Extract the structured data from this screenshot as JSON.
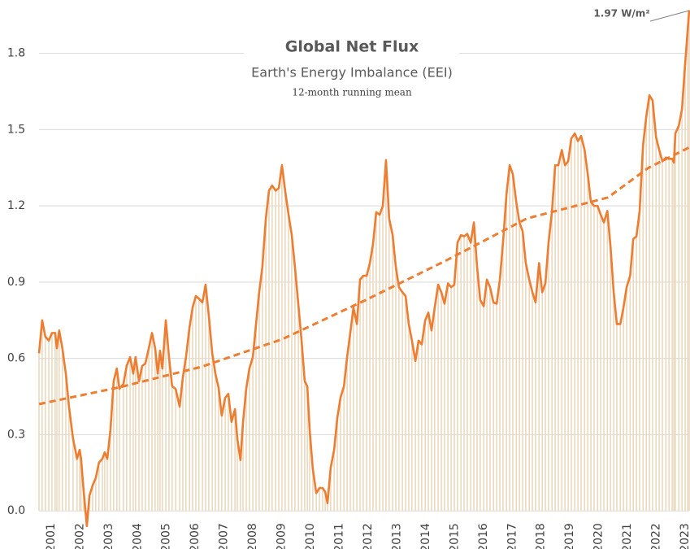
{
  "chart_data": {
    "type": "line",
    "title": "Global Net Flux",
    "subtitle": "Earth's Energy Imbalance (EEI)",
    "note": "12-month running mean",
    "annotation": "1.97 W/m²",
    "grid": true,
    "bar_color": "#ead9bf",
    "x": [
      2000.58,
      2000.69,
      2000.8,
      2000.92,
      2001.03,
      2001.14,
      2001.2,
      2001.28,
      2001.39,
      2001.51,
      2001.62,
      2001.76,
      2001.9,
      2001.99,
      2002.04,
      2002.13,
      2002.24,
      2002.33,
      2002.44,
      2002.55,
      2002.66,
      2002.78,
      2002.86,
      2002.95,
      2003.06,
      2003.17,
      2003.28,
      2003.37,
      2003.51,
      2003.62,
      2003.74,
      2003.85,
      2003.93,
      2004.05,
      2004.16,
      2004.27,
      2004.39,
      2004.5,
      2004.61,
      2004.7,
      2004.78,
      2004.86,
      2004.98,
      2005.09,
      2005.2,
      2005.32,
      2005.46,
      2005.57,
      2005.68,
      2005.8,
      2005.91,
      2006.02,
      2006.13,
      2006.25,
      2006.36,
      2006.47,
      2006.59,
      2006.7,
      2006.81,
      2006.92,
      2007.04,
      2007.15,
      2007.26,
      2007.38,
      2007.46,
      2007.57,
      2007.66,
      2007.77,
      2007.88,
      2008.0,
      2008.11,
      2008.22,
      2008.33,
      2008.45,
      2008.56,
      2008.67,
      2008.79,
      2008.9,
      2009.01,
      2009.12,
      2009.24,
      2009.35,
      2009.46,
      2009.58,
      2009.69,
      2009.8,
      2009.89,
      2009.97,
      2010.08,
      2010.2,
      2010.31,
      2010.42,
      2010.51,
      2010.59,
      2010.7,
      2010.82,
      2010.93,
      2011.04,
      2011.16,
      2011.27,
      2011.38,
      2011.49,
      2011.61,
      2011.72,
      2011.83,
      2011.95,
      2012.06,
      2012.17,
      2012.28,
      2012.4,
      2012.51,
      2012.62,
      2012.73,
      2012.85,
      2012.96,
      2013.07,
      2013.19,
      2013.3,
      2013.41,
      2013.52,
      2013.64,
      2013.75,
      2013.86,
      2013.98,
      2014.09,
      2014.2,
      2014.31,
      2014.43,
      2014.54,
      2014.65,
      2014.77,
      2014.88,
      2014.99,
      2015.1,
      2015.22,
      2015.33,
      2015.44,
      2015.56,
      2015.67,
      2015.78,
      2015.89,
      2016.01,
      2016.12,
      2016.23,
      2016.35,
      2016.46,
      2016.57,
      2016.68,
      2016.8,
      2016.91,
      2017.02,
      2017.14,
      2017.25,
      2017.36,
      2017.47,
      2017.59,
      2017.7,
      2017.81,
      2017.93,
      2018.04,
      2018.15,
      2018.26,
      2018.38,
      2018.49,
      2018.6,
      2018.72,
      2018.83,
      2018.94,
      2019.05,
      2019.17,
      2019.28,
      2019.39,
      2019.51,
      2019.62,
      2019.73,
      2019.84,
      2019.96,
      2020.07,
      2020.18,
      2020.3,
      2020.41,
      2020.52,
      2020.63,
      2020.75,
      2020.86,
      2020.97,
      2021.09,
      2021.2,
      2021.31,
      2021.42,
      2021.54,
      2021.65,
      2021.76,
      2021.87,
      2021.99,
      2022.1,
      2022.21,
      2022.33,
      2022.44,
      2022.55,
      2022.61,
      2022.66,
      2022.78,
      2022.89,
      2023.0,
      2023.09,
      2023.14
    ],
    "series": [
      {
        "color": "#ed7d31",
        "values": [
          0.62,
          0.75,
          0.685,
          0.67,
          0.7,
          0.7,
          0.64,
          0.71,
          0.64,
          0.54,
          0.41,
          0.285,
          0.205,
          0.24,
          0.205,
          0.077,
          -0.06,
          0.06,
          0.1,
          0.13,
          0.19,
          0.205,
          0.23,
          0.205,
          0.32,
          0.51,
          0.56,
          0.48,
          0.5,
          0.57,
          0.605,
          0.54,
          0.605,
          0.51,
          0.57,
          0.58,
          0.64,
          0.7,
          0.64,
          0.54,
          0.63,
          0.56,
          0.75,
          0.605,
          0.49,
          0.48,
          0.41,
          0.525,
          0.605,
          0.72,
          0.8,
          0.845,
          0.835,
          0.82,
          0.89,
          0.77,
          0.62,
          0.54,
          0.485,
          0.375,
          0.445,
          0.46,
          0.35,
          0.4,
          0.285,
          0.2,
          0.35,
          0.48,
          0.56,
          0.605,
          0.735,
          0.86,
          0.96,
          1.15,
          1.26,
          1.28,
          1.26,
          1.27,
          1.36,
          1.26,
          1.165,
          1.085,
          0.96,
          0.81,
          0.67,
          0.51,
          0.49,
          0.32,
          0.165,
          0.07,
          0.09,
          0.09,
          0.075,
          0.03,
          0.17,
          0.24,
          0.365,
          0.445,
          0.49,
          0.605,
          0.7,
          0.8,
          0.735,
          0.91,
          0.925,
          0.925,
          0.975,
          1.05,
          1.175,
          1.165,
          1.2,
          1.38,
          1.15,
          1.085,
          0.96,
          0.88,
          0.86,
          0.845,
          0.735,
          0.67,
          0.59,
          0.67,
          0.655,
          0.75,
          0.78,
          0.71,
          0.8,
          0.89,
          0.86,
          0.815,
          0.895,
          0.88,
          0.89,
          1.055,
          1.085,
          1.08,
          1.09,
          1.055,
          1.135,
          0.96,
          0.83,
          0.805,
          0.91,
          0.88,
          0.82,
          0.815,
          0.91,
          1.055,
          1.245,
          1.36,
          1.325,
          1.215,
          1.135,
          1.1,
          0.975,
          0.91,
          0.86,
          0.82,
          0.975,
          0.86,
          0.895,
          1.055,
          1.18,
          1.36,
          1.36,
          1.42,
          1.36,
          1.375,
          1.465,
          1.485,
          1.455,
          1.475,
          1.42,
          1.325,
          1.215,
          1.2,
          1.2,
          1.165,
          1.135,
          1.18,
          1.04,
          0.86,
          0.735,
          0.735,
          0.8,
          0.88,
          0.925,
          1.07,
          1.08,
          1.18,
          1.44,
          1.55,
          1.635,
          1.615,
          1.47,
          1.42,
          1.375,
          1.39,
          1.385,
          1.385,
          1.37,
          1.485,
          1.515,
          1.58,
          1.76,
          1.895,
          1.97
        ]
      },
      {
        "color": "#ed7d31",
        "dashed": true,
        "x": [
          2000.58,
          2003.4,
          2006.22,
          2009.03,
          2011.85,
          2014.67,
          2017.5,
          2020.32,
          2021.73,
          2023.14
        ],
        "values": [
          0.42,
          0.487,
          0.567,
          0.676,
          0.826,
          0.983,
          1.15,
          1.233,
          1.35,
          1.43
        ]
      }
    ],
    "xlim": [
      2000.58,
      2023.14
    ],
    "xticks": [
      2001,
      2002,
      2003,
      2004,
      2005,
      2006,
      2007,
      2008,
      2009,
      2010,
      2011,
      2012,
      2013,
      2014,
      2015,
      2016,
      2017,
      2018,
      2019,
      2020,
      2021,
      2022,
      2023
    ],
    "ylim": [
      -0.07,
      2.01
    ],
    "yticks": [
      {
        "value": 0,
        "label": "0.0"
      },
      0.3,
      0.6,
      0.9,
      1.2,
      1.5,
      1.8
    ]
  }
}
